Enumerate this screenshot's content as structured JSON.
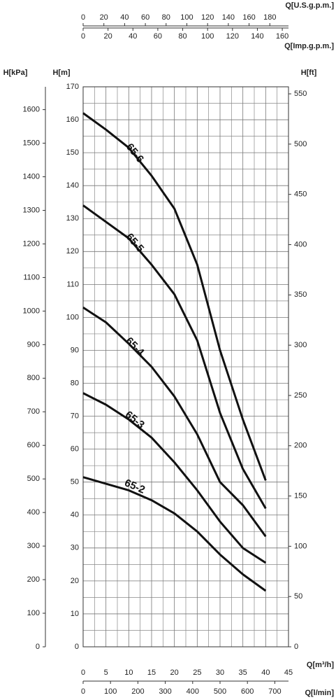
{
  "chart_data": {
    "type": "line",
    "x_label": "Q[m³/h]",
    "y_label": "H[m]",
    "x": [
      0,
      5,
      10,
      15,
      20,
      25,
      30,
      35,
      40
    ],
    "series": [
      {
        "name": "65-6",
        "color": "#111111",
        "values": [
          162,
          157,
          151.5,
          143,
          133,
          116,
          90,
          69,
          50.5
        ]
      },
      {
        "name": "65-5",
        "color": "#111111",
        "values": [
          134,
          129,
          124,
          116,
          107,
          93,
          71,
          54,
          42
        ]
      },
      {
        "name": "65-4",
        "color": "#111111",
        "values": [
          103,
          98.5,
          92,
          85,
          76,
          64.5,
          50,
          43,
          33.5
        ]
      },
      {
        "name": "65-3",
        "color": "#111111",
        "values": [
          77,
          73.5,
          69,
          63.5,
          56,
          47.5,
          38,
          30,
          25.5
        ]
      },
      {
        "name": "65-2",
        "color": "#111111",
        "values": [
          51.5,
          49.5,
          47.5,
          44.5,
          40.5,
          35,
          28,
          22,
          17
        ]
      }
    ],
    "xlim": [
      0,
      45
    ],
    "xticks": [
      0,
      5,
      10,
      15,
      20,
      25,
      30,
      35,
      40,
      45
    ],
    "ylim": [
      0,
      170
    ],
    "yticks": [
      0,
      10,
      20,
      30,
      40,
      50,
      60,
      70,
      80,
      90,
      100,
      110,
      120,
      130,
      140,
      150,
      160,
      170
    ],
    "grid": true,
    "minor_grid": true,
    "y2_label": "H[ft]",
    "y2lim": [
      0,
      557
    ],
    "y2ticks": [
      0,
      50,
      100,
      150,
      200,
      250,
      300,
      350,
      400,
      450,
      500,
      550
    ],
    "extra_axes": [
      {
        "side": "left",
        "label": "H[kPa]",
        "lim": [
          0,
          1668
        ],
        "ticks": [
          0,
          100,
          200,
          300,
          400,
          500,
          600,
          700,
          800,
          900,
          1000,
          1100,
          1200,
          1300,
          1400,
          1500,
          1600
        ]
      },
      {
        "side": "top",
        "label": "Q[U.S.g.p.m.]",
        "lim": [
          0,
          198
        ],
        "ticks": [
          0,
          20,
          40,
          60,
          80,
          100,
          120,
          140,
          160,
          180
        ]
      },
      {
        "side": "top2",
        "label": "Q[Imp.g.p.m.]",
        "lim": [
          0,
          165
        ],
        "ticks": [
          0,
          20,
          40,
          60,
          80,
          100,
          120,
          140,
          160
        ]
      },
      {
        "side": "bottom2",
        "label": "Q[l/min]",
        "lim": [
          0,
          750
        ],
        "ticks": [
          0,
          100,
          200,
          300,
          400,
          500,
          600,
          700
        ]
      }
    ]
  }
}
